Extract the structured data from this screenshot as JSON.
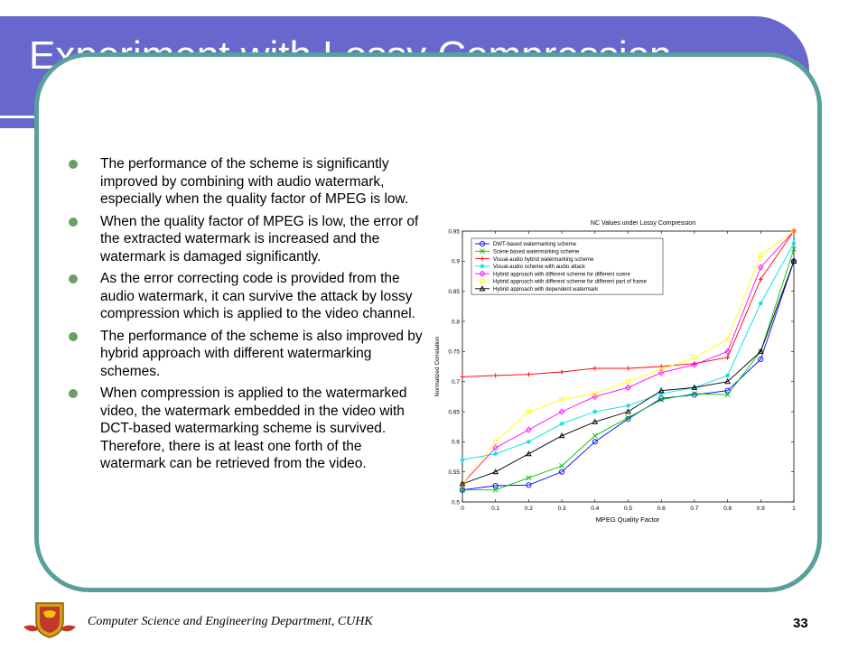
{
  "slide": {
    "title": "Experiment with Lossy Compression",
    "bullets": [
      "The performance of the scheme is significantly improved by combining with audio watermark, especially when the quality factor of MPEG is low.",
      "When the quality factor of MPEG is low, the error of the extracted watermark is increased and the watermark is damaged significantly.",
      "As the error correcting code is provided from the audio watermark, it can survive the attack by lossy compression which is applied to the video channel.",
      "The performance of the scheme is also improved by hybrid approach with different watermarking schemes.",
      "When compression is applied to the watermarked video, the watermark embedded in the video with DCT-based watermarking scheme is survived. Therefore, there is at least one forth of the watermark can be retrieved from the video."
    ],
    "footer": "Computer Science and Engineering Department, CUHK",
    "page_number": "33",
    "logo_icon": "university-crest-icon",
    "colors": {
      "title_band": "#6767cd",
      "frame": "#5aa09a",
      "bullet": "#6a9f63"
    }
  },
  "chart_data": {
    "type": "line",
    "title": "NC Values under Lossy Compression",
    "xlabel": "MPEG Quality Factor",
    "ylabel": "Normalized Correlation",
    "xlim": [
      0,
      1
    ],
    "ylim": [
      0.5,
      0.95
    ],
    "x": [
      0,
      0.1,
      0.2,
      0.3,
      0.4,
      0.5,
      0.6,
      0.7,
      0.8,
      0.9,
      1
    ],
    "x_ticks": [
      "0",
      "0.1",
      "0.2",
      "0.3",
      "0.4",
      "0.5",
      "0.6",
      "0.7",
      "0.8",
      "0.9",
      "1"
    ],
    "y_ticks": [
      "0.5",
      "0.55",
      "0.6",
      "0.65",
      "0.7",
      "0.75",
      "0.8",
      "0.85",
      "0.9",
      "0.95"
    ],
    "legend_position": "top-left",
    "grid": false,
    "series": [
      {
        "name": "DWT-based watermarking scheme",
        "color": "#0000ff",
        "marker": "circle",
        "values": [
          0.52,
          0.527,
          0.528,
          0.55,
          0.6,
          0.638,
          0.672,
          0.678,
          0.685,
          0.737,
          0.9
        ]
      },
      {
        "name": "Scene based watermarking scheme",
        "color": "#00c000",
        "marker": "x",
        "values": [
          0.52,
          0.52,
          0.54,
          0.56,
          0.61,
          0.64,
          0.67,
          0.68,
          0.678,
          0.75,
          0.92
        ]
      },
      {
        "name": "Visual-audio hybrid watermarking scheme",
        "color": "#ff0000",
        "marker": "plus",
        "values": [
          0.708,
          0.71,
          0.712,
          0.716,
          0.722,
          0.722,
          0.725,
          0.73,
          0.74,
          0.87,
          0.95
        ]
      },
      {
        "name": "Visual-audio scheme with audio attack",
        "color": "#00e0e0",
        "marker": "star",
        "values": [
          0.57,
          0.58,
          0.6,
          0.63,
          0.65,
          0.66,
          0.68,
          0.69,
          0.71,
          0.83,
          0.93
        ]
      },
      {
        "name": "Hybrid approach with different scheme for different scene",
        "color": "#ff00ff",
        "marker": "diamond",
        "values": [
          0.53,
          0.59,
          0.62,
          0.65,
          0.675,
          0.69,
          0.715,
          0.728,
          0.75,
          0.89,
          0.95
        ]
      },
      {
        "name": "Hybrid approach with different scheme for different part of frame",
        "color": "#ffff00",
        "marker": "square",
        "values": [
          0.53,
          0.6,
          0.65,
          0.67,
          0.68,
          0.7,
          0.72,
          0.74,
          0.77,
          0.91,
          0.95
        ]
      },
      {
        "name": "Hybrid approach with dependent watermark",
        "color": "#000000",
        "marker": "triangle",
        "values": [
          0.53,
          0.55,
          0.58,
          0.61,
          0.633,
          0.65,
          0.685,
          0.69,
          0.7,
          0.75,
          0.9
        ]
      }
    ]
  }
}
